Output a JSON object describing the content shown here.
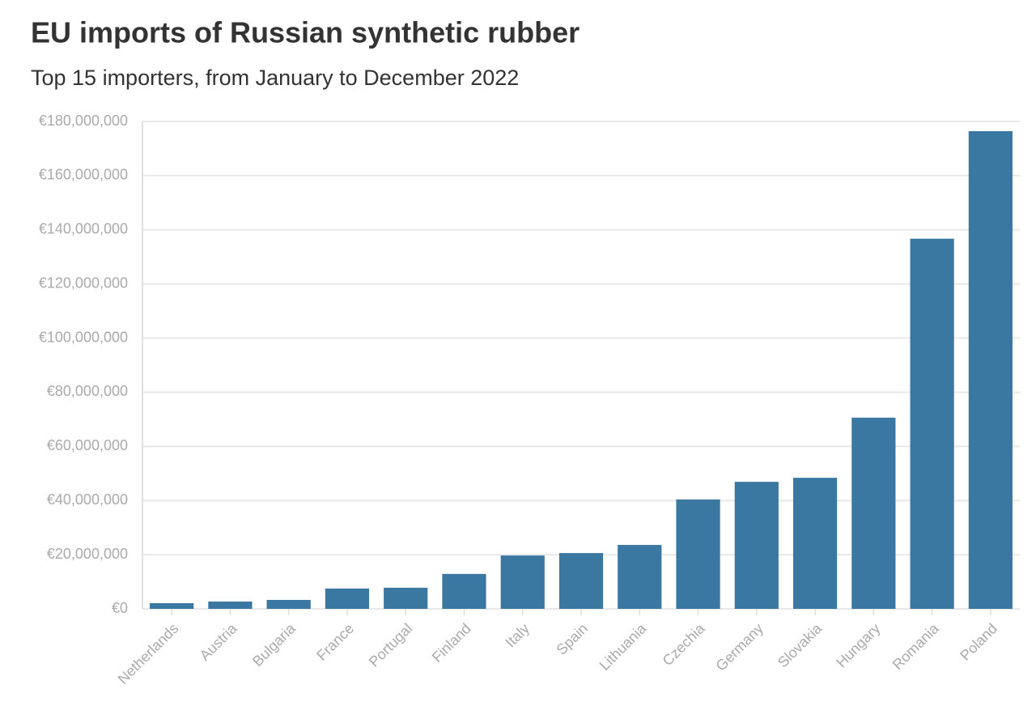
{
  "chart_data": {
    "type": "bar",
    "title": "EU imports of Russian synthetic rubber",
    "subtitle": "Top 15 importers, from January to December 2022",
    "categories": [
      "Netherlands",
      "Austria",
      "Bulgaria",
      "France",
      "Portugal",
      "Finland",
      "Italy",
      "Spain",
      "Lithuania",
      "Czechia",
      "Germany",
      "Slovakia",
      "Hungary",
      "Romania",
      "Poland"
    ],
    "values": [
      2100000,
      2700000,
      3300000,
      7500000,
      7800000,
      12900000,
      19700000,
      20600000,
      23600000,
      40400000,
      46900000,
      48400000,
      70600000,
      136700000,
      176400000
    ],
    "color": "#3a77a1",
    "ylim": [
      0,
      180000000
    ],
    "yticks": [
      {
        "value": 0,
        "label": "€0"
      },
      {
        "value": 20000000,
        "label": "€20,000,000"
      },
      {
        "value": 40000000,
        "label": "€40,000,000"
      },
      {
        "value": 60000000,
        "label": "€60,000,000"
      },
      {
        "value": 80000000,
        "label": "€80,000,000"
      },
      {
        "value": 100000000,
        "label": "€100,000,000"
      },
      {
        "value": 120000000,
        "label": "€120,000,000"
      },
      {
        "value": 140000000,
        "label": "€140,000,000"
      },
      {
        "value": 160000000,
        "label": "€160,000,000"
      },
      {
        "value": 180000000,
        "label": "€180,000,000"
      }
    ],
    "grid": true
  }
}
